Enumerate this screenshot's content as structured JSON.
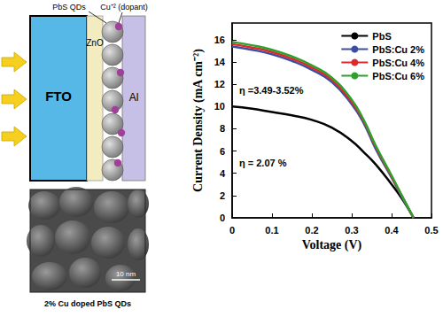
{
  "chart_data": {
    "type": "line",
    "x_label": "Voltage (V)",
    "y_label": "Current Density (mA cm⁻²)",
    "x": [
      0,
      0.05,
      0.1,
      0.15,
      0.2,
      0.25,
      0.3,
      0.33,
      0.36,
      0.4,
      0.43,
      0.455
    ],
    "series": [
      {
        "name": "PbS",
        "color": "#000000",
        "values": [
          10.0,
          9.8,
          9.5,
          9.2,
          8.8,
          8.1,
          6.9,
          5.9,
          4.8,
          3.0,
          1.5,
          0
        ]
      },
      {
        "name": "PbS:Cu 2%",
        "color": "#3b4ea0",
        "values": [
          15.4,
          15.1,
          14.7,
          14.1,
          13.3,
          12.2,
          10.2,
          8.5,
          6.2,
          3.6,
          1.6,
          0
        ]
      },
      {
        "name": "PbS:Cu 4%",
        "color": "#e0282c",
        "values": [
          15.6,
          15.3,
          14.9,
          14.3,
          13.5,
          12.4,
          10.4,
          8.7,
          6.4,
          3.7,
          1.7,
          0
        ]
      },
      {
        "name": "PbS:Cu 6%",
        "color": "#2fa02c",
        "values": [
          15.8,
          15.5,
          15.1,
          14.5,
          13.7,
          12.6,
          10.6,
          8.8,
          6.5,
          3.8,
          1.7,
          0
        ]
      }
    ],
    "xlim": [
      0,
      0.5
    ],
    "xticks": [
      0,
      0.1,
      0.2,
      0.3,
      0.4,
      0.5
    ],
    "ylim": [
      0,
      17.5
    ],
    "yticks": [
      0,
      2,
      4,
      6,
      8,
      10,
      12,
      14,
      16
    ],
    "annotations": [
      "η =3.49-3.52%",
      "η = 2.07 %"
    ],
    "legend": "upper right",
    "grid": false,
    "marker": "none",
    "line_style": "solid"
  },
  "diagram": {
    "layers": [
      "FTO",
      "ZnO",
      "Al"
    ],
    "quantum_dots": "PbS QDs",
    "dopant": "Cu⁺² (dopant)",
    "micrograph": {
      "scale_bar": "10 nm",
      "caption": "2% Cu doped PbS QDs"
    }
  }
}
